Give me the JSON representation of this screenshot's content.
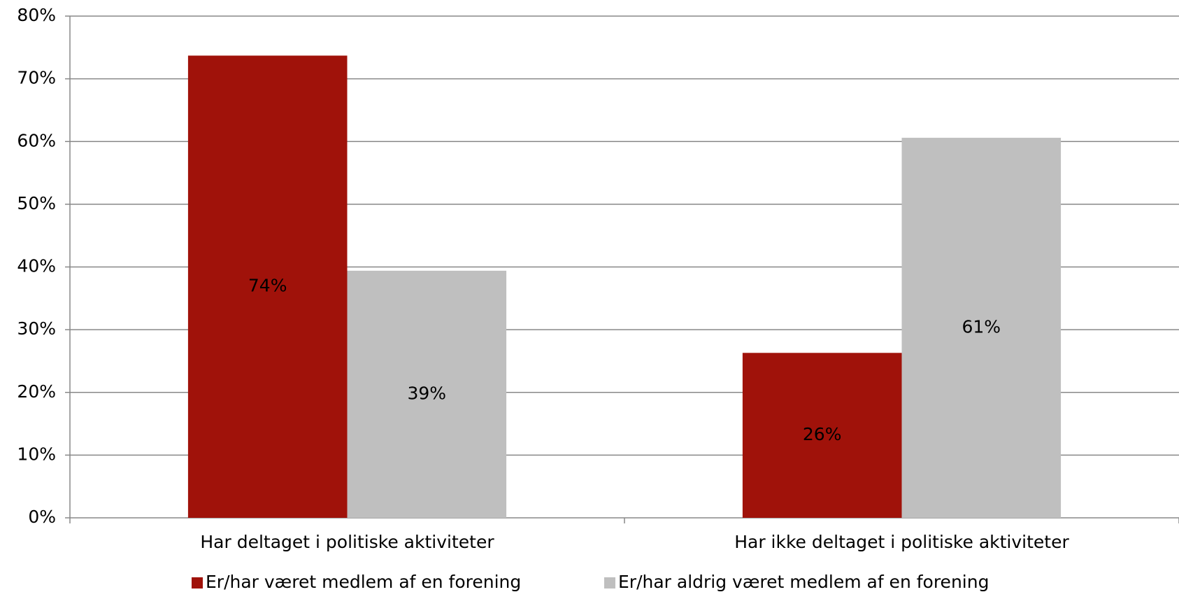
{
  "chart_data": {
    "type": "bar",
    "categories": [
      "Har deltaget i politiske aktiviteter",
      "Har ikke deltaget i politiske aktiviteter"
    ],
    "series": [
      {
        "name": "Er/har været medlem af en forening",
        "color": "#a0120a",
        "values": [
          73.7,
          26.3
        ],
        "value_labels": [
          "74%",
          "26%"
        ]
      },
      {
        "name": "Er/har aldrig været medlem af en forening",
        "color": "#bfbfbf",
        "values": [
          39.4,
          60.6
        ],
        "value_labels": [
          "39%",
          "61%"
        ]
      }
    ],
    "ylim": [
      0,
      80
    ],
    "yticks": [
      {
        "value": 0,
        "label": "0%"
      },
      {
        "value": 10,
        "label": "10%"
      },
      {
        "value": 20,
        "label": "20%"
      },
      {
        "value": 30,
        "label": "30%"
      },
      {
        "value": 40,
        "label": "40%"
      },
      {
        "value": 50,
        "label": "50%"
      },
      {
        "value": 60,
        "label": "60%"
      },
      {
        "value": 70,
        "label": "70%"
      },
      {
        "value": 80,
        "label": "80%"
      }
    ],
    "grid": true,
    "legend": "bottom"
  }
}
